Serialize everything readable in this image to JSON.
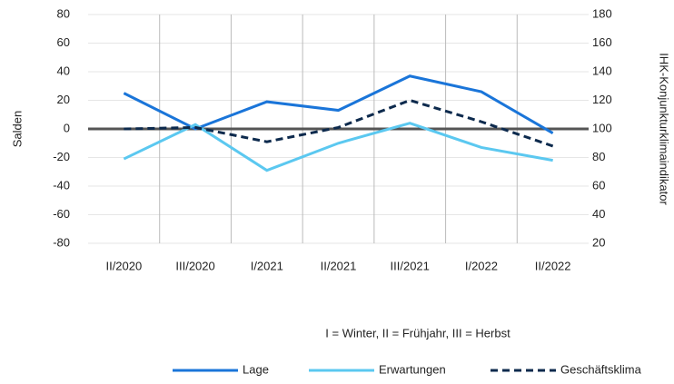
{
  "chart_data": {
    "type": "line",
    "categories": [
      "II/2020",
      "III/2020",
      "I/2021",
      "II/2021",
      "III/2021",
      "I/2022",
      "II/2022"
    ],
    "series": [
      {
        "name": "Lage",
        "color": "#1a75d9",
        "values": [
          25,
          0,
          19,
          13,
          37,
          26,
          -3
        ]
      },
      {
        "name": "Erwartungen",
        "color": "#5bc8f0",
        "values": [
          -21,
          3,
          -29,
          -10,
          4,
          -13,
          -22
        ]
      },
      {
        "name": "Geschäftsklima",
        "color": "#0d2a4d",
        "axis": "y2",
        "line_style": "dashed",
        "values": [
          100,
          101,
          91,
          101,
          120,
          105,
          88
        ]
      }
    ],
    "ylabel": "Salden",
    "y2label": "IHK-Konjunkturklimaindikator",
    "ylim": [
      -80,
      80
    ],
    "yticks": [
      -80,
      -60,
      -40,
      -20,
      0,
      20,
      40,
      60,
      80
    ],
    "y2lim": [
      20,
      180
    ],
    "y2ticks": [
      20,
      40,
      60,
      80,
      100,
      120,
      140,
      160,
      180
    ],
    "annotation": "I = Winter, II = Frühjahr, III = Herbst",
    "grid": true,
    "legend": "bottom"
  }
}
